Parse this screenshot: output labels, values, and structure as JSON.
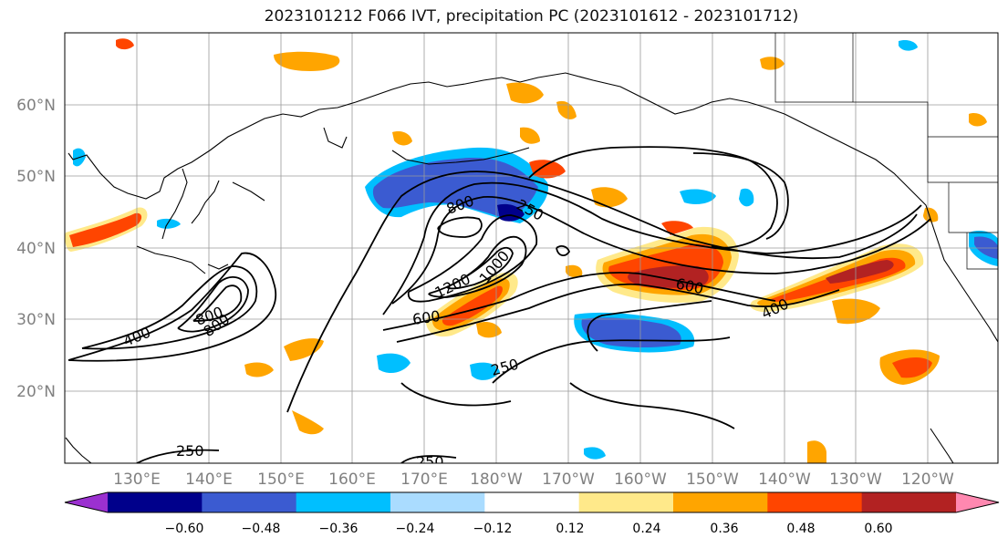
{
  "title": "2023101212 F066 IVT, precipitation PC (2023101612 - 2023101712)",
  "lat_labels": [
    "60°N",
    "50°N",
    "40°N",
    "30°N",
    "20°N"
  ],
  "lon_labels": [
    "130°E",
    "140°E",
    "150°E",
    "160°E",
    "170°E",
    "180°W",
    "170°W",
    "160°W",
    "150°W",
    "140°W",
    "130°W",
    "120°W"
  ],
  "contour_labels": [
    "250",
    "250",
    "250",
    "250",
    "400",
    "400",
    "600",
    "600",
    "800",
    "800",
    "800",
    "1200",
    "1000"
  ],
  "colorbar": {
    "ticks": [
      "−0.60",
      "−0.48",
      "−0.36",
      "−0.24",
      "−0.12",
      "0.12",
      "0.24",
      "0.36",
      "0.48",
      "0.60"
    ],
    "colors": [
      "#9b30d0",
      "#00008b",
      "#3b5bd1",
      "#00bfff",
      "#aadcff",
      "#ffffff",
      "#ffe98a",
      "#ffa500",
      "#ff4500",
      "#b22222",
      "#ff88b0"
    ]
  }
}
